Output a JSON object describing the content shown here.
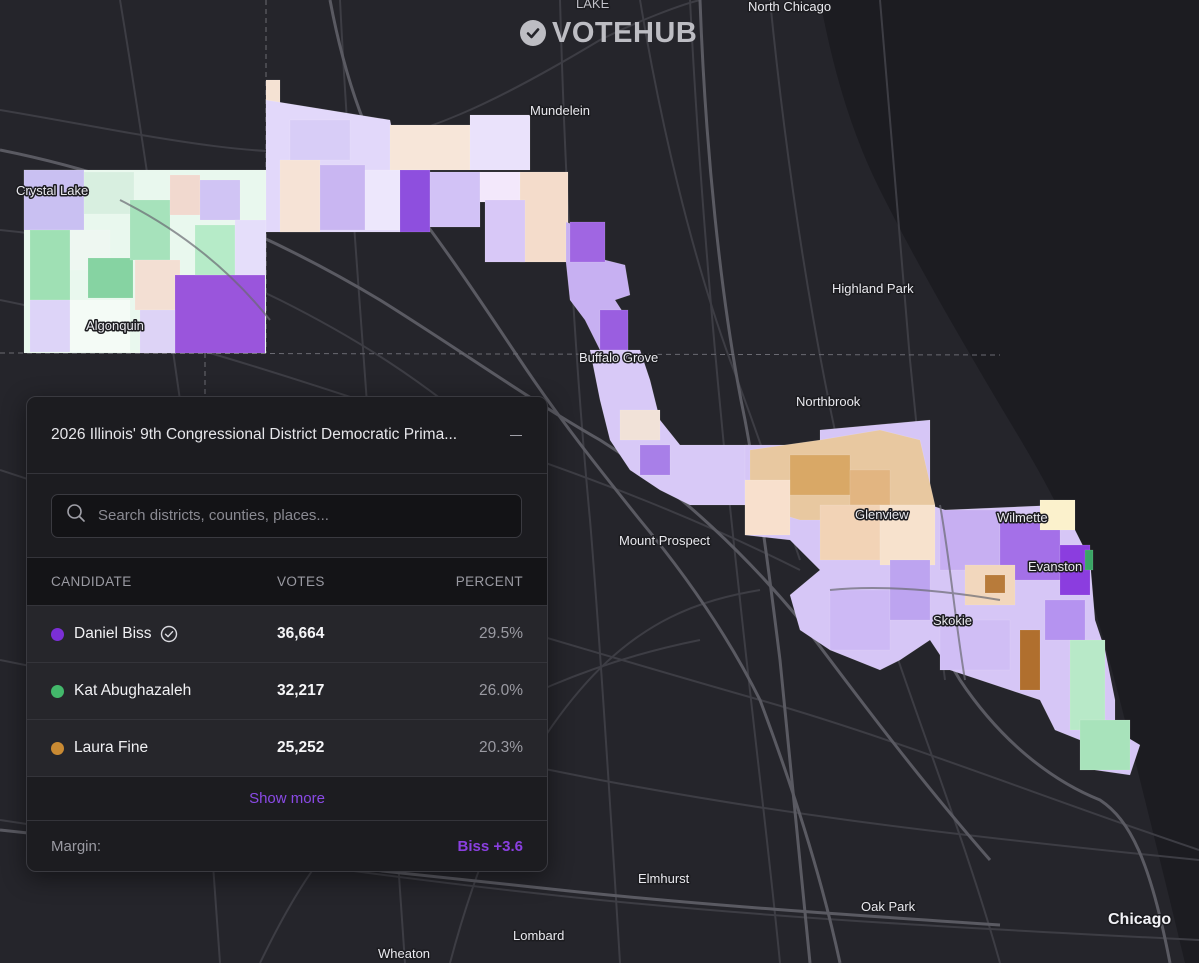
{
  "brand": {
    "logo_text": "VOTEHUB"
  },
  "map": {
    "labels": [
      {
        "text": "LAKE"
      },
      {
        "text": "North Chicago"
      },
      {
        "text": "Mundelein"
      },
      {
        "text": "Crystal Lake"
      },
      {
        "text": "Highland Park"
      },
      {
        "text": "Algonquin"
      },
      {
        "text": "Buffalo Grove"
      },
      {
        "text": "Northbrook"
      },
      {
        "text": "Glenview"
      },
      {
        "text": "Wilmette"
      },
      {
        "text": "Mount Prospect"
      },
      {
        "text": "Evanston"
      },
      {
        "text": "Skokie"
      },
      {
        "text": "Elmhurst"
      },
      {
        "text": "Oak Park"
      },
      {
        "text": "Chicago"
      },
      {
        "text": "Lombard"
      },
      {
        "text": "Wheaton"
      }
    ]
  },
  "panel": {
    "title": "2026 Illinois' 9th Congressional District Democratic Prima...",
    "search_placeholder": "Search districts, counties, places...",
    "columns": {
      "candidate": "CANDIDATE",
      "votes": "VOTES",
      "percent": "PERCENT"
    },
    "candidates": [
      {
        "name": "Daniel Biss",
        "votes": "36,664",
        "percent": "29.5%",
        "color": "#7b2fd6",
        "winner": true
      },
      {
        "name": "Kat Abughazaleh",
        "votes": "32,217",
        "percent": "26.0%",
        "color": "#43b86b",
        "winner": false
      },
      {
        "name": "Laura Fine",
        "votes": "25,252",
        "percent": "20.3%",
        "color": "#c98a33",
        "winner": false
      }
    ],
    "show_more_label": "Show more",
    "margin_label": "Margin:",
    "margin_value": "Biss +3.6",
    "margin_color": "#8a3fe0"
  }
}
